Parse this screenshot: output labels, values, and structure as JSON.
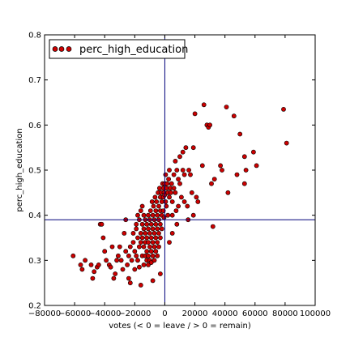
{
  "chart_data": {
    "type": "scatter",
    "xlabel": "votes (< 0 = leave / > 0 = remain)",
    "ylabel": "perc_high_education",
    "xlim": [
      -80000,
      100000
    ],
    "ylim": [
      0.2,
      0.8
    ],
    "xticks": [
      -80000,
      -60000,
      -40000,
      -20000,
      0,
      20000,
      40000,
      60000,
      80000,
      100000
    ],
    "yticks": [
      0.2,
      0.3,
      0.4,
      0.5,
      0.6,
      0.7,
      0.8
    ],
    "xtick_labels": [
      "−80000",
      "−60000",
      "−40000",
      "−20000",
      "0",
      "20000",
      "40000",
      "60000",
      "80000",
      "100000"
    ],
    "ytick_labels": [
      "0.2",
      "0.3",
      "0.4",
      "0.5",
      "0.6",
      "0.7",
      "0.8"
    ],
    "grid": false,
    "legend": {
      "position": "top-left",
      "entries": [
        "perc_high_education"
      ]
    },
    "reference_lines": {
      "vertical_x": 0,
      "horizontal_y": 0.39
    },
    "colors": {
      "marker_fill": "#cc0000",
      "marker_edge": "#000000",
      "reference_line": "#00007a"
    },
    "series": [
      {
        "name": "perc_high_education",
        "points": [
          [
            -61000,
            0.31
          ],
          [
            -56000,
            0.29
          ],
          [
            -55000,
            0.28
          ],
          [
            -53000,
            0.3
          ],
          [
            -49000,
            0.29
          ],
          [
            -48000,
            0.26
          ],
          [
            -47000,
            0.275
          ],
          [
            -45000,
            0.285
          ],
          [
            -44000,
            0.29
          ],
          [
            -43000,
            0.38
          ],
          [
            -42000,
            0.38
          ],
          [
            -41000,
            0.35
          ],
          [
            -40000,
            0.32
          ],
          [
            -39000,
            0.3
          ],
          [
            -37000,
            0.29
          ],
          [
            -36000,
            0.285
          ],
          [
            -35000,
            0.33
          ],
          [
            -34000,
            0.26
          ],
          [
            -33000,
            0.27
          ],
          [
            -32000,
            0.3
          ],
          [
            -31000,
            0.31
          ],
          [
            -30000,
            0.33
          ],
          [
            -29000,
            0.3
          ],
          [
            -28000,
            0.28
          ],
          [
            -27000,
            0.36
          ],
          [
            -26000,
            0.32
          ],
          [
            -26000,
            0.39
          ],
          [
            -25000,
            0.29
          ],
          [
            -24000,
            0.31
          ],
          [
            -24000,
            0.26
          ],
          [
            -23000,
            0.25
          ],
          [
            -23000,
            0.33
          ],
          [
            -22000,
            0.3
          ],
          [
            -21000,
            0.36
          ],
          [
            -21000,
            0.34
          ],
          [
            -20000,
            0.32
          ],
          [
            -20000,
            0.28
          ],
          [
            -19000,
            0.37
          ],
          [
            -19000,
            0.38
          ],
          [
            -19000,
            0.31
          ],
          [
            -18000,
            0.4
          ],
          [
            -18000,
            0.35
          ],
          [
            -18000,
            0.3
          ],
          [
            -17000,
            0.39
          ],
          [
            -17000,
            0.33
          ],
          [
            -17000,
            0.285
          ],
          [
            -16000,
            0.41
          ],
          [
            -16000,
            0.36
          ],
          [
            -16000,
            0.34
          ],
          [
            -16000,
            0.245
          ],
          [
            -15000,
            0.42
          ],
          [
            -15000,
            0.38
          ],
          [
            -15000,
            0.35
          ],
          [
            -15000,
            0.31
          ],
          [
            -14000,
            0.4
          ],
          [
            -14000,
            0.37
          ],
          [
            -14000,
            0.33
          ],
          [
            -14000,
            0.29
          ],
          [
            -13000,
            0.39
          ],
          [
            -13000,
            0.36
          ],
          [
            -13000,
            0.34
          ],
          [
            -13000,
            0.31
          ],
          [
            -12000,
            0.38
          ],
          [
            -12000,
            0.35
          ],
          [
            -12000,
            0.32
          ],
          [
            -12000,
            0.3
          ],
          [
            -11000,
            0.4
          ],
          [
            -11000,
            0.37
          ],
          [
            -11000,
            0.34
          ],
          [
            -11000,
            0.31
          ],
          [
            -11000,
            0.29
          ],
          [
            -10000,
            0.39
          ],
          [
            -10000,
            0.36
          ],
          [
            -10000,
            0.33
          ],
          [
            -10000,
            0.3
          ],
          [
            -9500,
            0.41
          ],
          [
            -9000,
            0.38
          ],
          [
            -9000,
            0.35
          ],
          [
            -9000,
            0.32
          ],
          [
            -9000,
            0.295
          ],
          [
            -8500,
            0.43
          ],
          [
            -8000,
            0.4
          ],
          [
            -8000,
            0.37
          ],
          [
            -8000,
            0.34
          ],
          [
            -8000,
            0.31
          ],
          [
            -8000,
            0.255
          ],
          [
            -7500,
            0.42
          ],
          [
            -7000,
            0.39
          ],
          [
            -7000,
            0.36
          ],
          [
            -7000,
            0.33
          ],
          [
            -7000,
            0.3
          ],
          [
            -6500,
            0.44
          ],
          [
            -6000,
            0.41
          ],
          [
            -6000,
            0.38
          ],
          [
            -6000,
            0.35
          ],
          [
            -6000,
            0.32
          ],
          [
            -5500,
            0.43
          ],
          [
            -5000,
            0.4
          ],
          [
            -5000,
            0.37
          ],
          [
            -5000,
            0.34
          ],
          [
            -5000,
            0.31
          ],
          [
            -4500,
            0.45
          ],
          [
            -4000,
            0.42
          ],
          [
            -4000,
            0.39
          ],
          [
            -4000,
            0.36
          ],
          [
            -4000,
            0.33
          ],
          [
            -3500,
            0.46
          ],
          [
            -3000,
            0.44
          ],
          [
            -3000,
            0.41
          ],
          [
            -3000,
            0.38
          ],
          [
            -3000,
            0.35
          ],
          [
            -3000,
            0.27
          ],
          [
            -2500,
            0.45
          ],
          [
            -2000,
            0.43
          ],
          [
            -2000,
            0.4
          ],
          [
            -2000,
            0.37
          ],
          [
            -1500,
            0.47
          ],
          [
            -1000,
            0.46
          ],
          [
            -1000,
            0.44
          ],
          [
            -1000,
            0.41
          ],
          [
            -500,
            0.45
          ],
          [
            -500,
            0.395
          ],
          [
            0,
            0.47
          ],
          [
            0,
            0.445
          ],
          [
            500,
            0.49
          ],
          [
            500,
            0.43
          ],
          [
            1000,
            0.46
          ],
          [
            1000,
            0.42
          ],
          [
            1500,
            0.47
          ],
          [
            2000,
            0.45
          ],
          [
            2000,
            0.4
          ],
          [
            2500,
            0.48
          ],
          [
            3000,
            0.44
          ],
          [
            3000,
            0.5
          ],
          [
            3000,
            0.34
          ],
          [
            3500,
            0.46
          ],
          [
            4000,
            0.45
          ],
          [
            4500,
            0.47
          ],
          [
            5000,
            0.43
          ],
          [
            5000,
            0.4
          ],
          [
            5000,
            0.36
          ],
          [
            6000,
            0.46
          ],
          [
            6000,
            0.49
          ],
          [
            7000,
            0.45
          ],
          [
            7000,
            0.52
          ],
          [
            7500,
            0.41
          ],
          [
            8000,
            0.5
          ],
          [
            8000,
            0.38
          ],
          [
            9000,
            0.48
          ],
          [
            9000,
            0.42
          ],
          [
            10000,
            0.53
          ],
          [
            10000,
            0.47
          ],
          [
            11000,
            0.44
          ],
          [
            12000,
            0.54
          ],
          [
            12000,
            0.5
          ],
          [
            13000,
            0.49
          ],
          [
            13000,
            0.43
          ],
          [
            14000,
            0.55
          ],
          [
            15000,
            0.42
          ],
          [
            15500,
            0.39
          ],
          [
            16000,
            0.5
          ],
          [
            17000,
            0.49
          ],
          [
            18000,
            0.45
          ],
          [
            19000,
            0.55
          ],
          [
            19000,
            0.4
          ],
          [
            20000,
            0.625
          ],
          [
            21000,
            0.44
          ],
          [
            22000,
            0.43
          ],
          [
            25000,
            0.51
          ],
          [
            26000,
            0.645
          ],
          [
            28000,
            0.6
          ],
          [
            29000,
            0.595
          ],
          [
            30000,
            0.6
          ],
          [
            31000,
            0.47
          ],
          [
            32000,
            0.375
          ],
          [
            33000,
            0.48
          ],
          [
            37000,
            0.51
          ],
          [
            38000,
            0.5
          ],
          [
            41000,
            0.64
          ],
          [
            42000,
            0.45
          ],
          [
            46000,
            0.62
          ],
          [
            48000,
            0.49
          ],
          [
            50000,
            0.58
          ],
          [
            53000,
            0.53
          ],
          [
            53000,
            0.47
          ],
          [
            54000,
            0.5
          ],
          [
            59000,
            0.54
          ],
          [
            61000,
            0.51
          ],
          [
            79000,
            0.635
          ],
          [
            81000,
            0.56
          ]
        ]
      }
    ]
  }
}
